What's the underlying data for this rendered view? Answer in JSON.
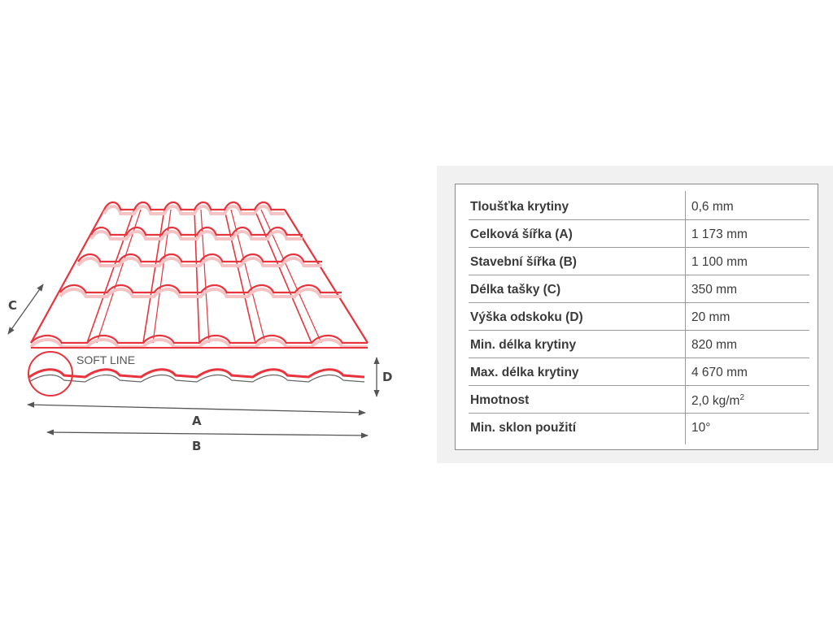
{
  "diagram": {
    "soft_line_label": "SOFT LINE",
    "dimensions": {
      "a": "A",
      "b": "B",
      "c": "C",
      "d": "D"
    },
    "colors": {
      "tile_stroke": "#e8343c",
      "tile_shadow": "#f6c3c5",
      "dimension": "#555555",
      "profile_underline": "#666666"
    }
  },
  "specs": {
    "rows": [
      {
        "label": "Tloušťka krytiny",
        "value": "0,6 mm"
      },
      {
        "label": "Celková šířka (A)",
        "value": "1 173 mm"
      },
      {
        "label": "Stavební šířka (B)",
        "value": "1 100 mm"
      },
      {
        "label": "Délka tašky (C)",
        "value": "350 mm"
      },
      {
        "label": "Výška odskoku (D)",
        "value": "20 mm"
      },
      {
        "label": "Min. délka krytiny",
        "value": "820 mm"
      },
      {
        "label": "Max. délka krytiny",
        "value": "4 670 mm"
      },
      {
        "label": "Hmotnost",
        "value": "2,0 kg/m",
        "value_sup": "2"
      },
      {
        "label": "Min. sklon použití",
        "value": "10°"
      }
    ]
  }
}
